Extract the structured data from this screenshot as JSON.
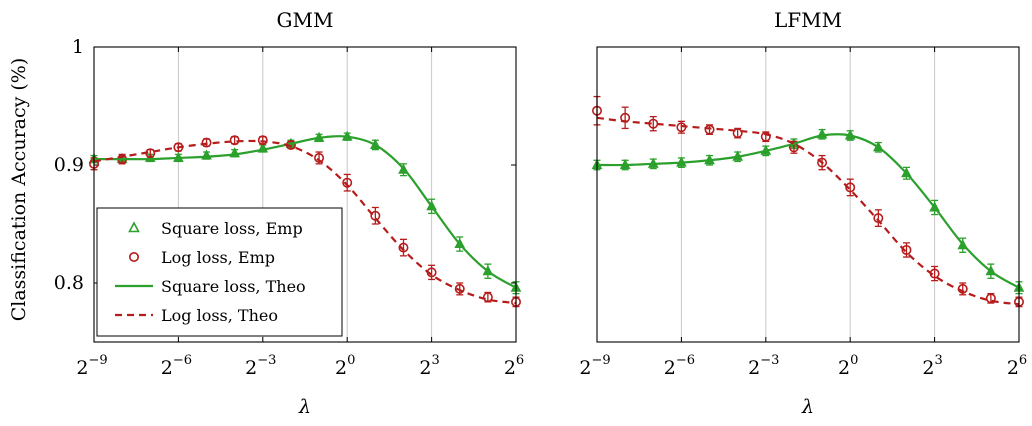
{
  "chart_data": [
    {
      "type": "line",
      "title": "GMM",
      "xlabel": "λ",
      "ylabel": "Classification Accuracy (%)",
      "x_scale": "log2",
      "x": [
        -9,
        -8,
        -7,
        -6,
        -5,
        -4,
        -3,
        -2,
        -1,
        0,
        1,
        2,
        3,
        4,
        5,
        6
      ],
      "xlim": [
        -9,
        6
      ],
      "ylim": [
        0.75,
        1.0
      ],
      "xticks": [
        -9,
        -6,
        -3,
        0,
        3,
        6
      ],
      "yticks": [
        0.8,
        0.9,
        1
      ],
      "ytick_labels": [
        "0.8",
        "0.9",
        "1"
      ],
      "grid": "vertical",
      "legend": "bottom-left",
      "series": [
        {
          "name": "Square loss, Emp",
          "kind": "markers",
          "marker": "triangle",
          "color": "#2ca02c",
          "values": [
            0.905,
            0.905,
            0.906,
            0.906,
            0.908,
            0.91,
            0.914,
            0.918,
            0.923,
            0.924,
            0.917,
            0.896,
            0.865,
            0.833,
            0.81,
            0.796
          ],
          "errors": [
            0.003,
            0.003,
            0.003,
            0.003,
            0.003,
            0.003,
            0.003,
            0.003,
            0.003,
            0.003,
            0.004,
            0.005,
            0.006,
            0.006,
            0.006,
            0.005
          ]
        },
        {
          "name": "Log loss, Emp",
          "kind": "markers",
          "marker": "circle",
          "color": "#b71c1c",
          "values": [
            0.901,
            0.905,
            0.91,
            0.915,
            0.919,
            0.921,
            0.921,
            0.917,
            0.906,
            0.885,
            0.857,
            0.83,
            0.809,
            0.795,
            0.788,
            0.784
          ],
          "errors": [
            0.005,
            0.004,
            0.003,
            0.003,
            0.003,
            0.003,
            0.003,
            0.003,
            0.005,
            0.007,
            0.007,
            0.007,
            0.006,
            0.005,
            0.004,
            0.004
          ]
        },
        {
          "name": "Square loss, Theo",
          "kind": "line",
          "style": "solid",
          "color": "#2ca02c",
          "values": [
            0.905,
            0.905,
            0.905,
            0.906,
            0.907,
            0.909,
            0.913,
            0.918,
            0.923,
            0.924,
            0.917,
            0.897,
            0.865,
            0.833,
            0.81,
            0.796
          ]
        },
        {
          "name": "Log loss, Theo",
          "kind": "line",
          "style": "dashed",
          "color": "#b71c1c",
          "values": [
            0.903,
            0.907,
            0.911,
            0.915,
            0.918,
            0.92,
            0.92,
            0.916,
            0.904,
            0.883,
            0.855,
            0.828,
            0.807,
            0.794,
            0.786,
            0.783
          ]
        }
      ]
    },
    {
      "type": "line",
      "title": "LFMM",
      "xlabel": "λ",
      "ylabel": "",
      "x_scale": "log2",
      "x": [
        -9,
        -8,
        -7,
        -6,
        -5,
        -4,
        -3,
        -2,
        -1,
        0,
        1,
        2,
        3,
        4,
        5,
        6
      ],
      "xlim": [
        -9,
        6
      ],
      "ylim": [
        0.75,
        1.0
      ],
      "xticks": [
        -9,
        -6,
        -3,
        0,
        3,
        6
      ],
      "yticks": [],
      "ytick_labels": [],
      "grid": "vertical",
      "legend": "none",
      "series": [
        {
          "name": "Square loss, Emp",
          "kind": "markers",
          "marker": "triangle",
          "color": "#2ca02c",
          "values": [
            0.9,
            0.9,
            0.901,
            0.902,
            0.904,
            0.907,
            0.912,
            0.918,
            0.926,
            0.925,
            0.915,
            0.893,
            0.864,
            0.832,
            0.81,
            0.796
          ],
          "errors": [
            0.004,
            0.004,
            0.004,
            0.004,
            0.004,
            0.004,
            0.004,
            0.004,
            0.004,
            0.004,
            0.004,
            0.005,
            0.006,
            0.006,
            0.006,
            0.005
          ]
        },
        {
          "name": "Log loss, Emp",
          "kind": "markers",
          "marker": "circle",
          "color": "#b71c1c",
          "values": [
            0.946,
            0.94,
            0.935,
            0.932,
            0.93,
            0.927,
            0.924,
            0.915,
            0.902,
            0.881,
            0.855,
            0.828,
            0.808,
            0.795,
            0.787,
            0.784
          ],
          "errors": [
            0.012,
            0.009,
            0.006,
            0.005,
            0.004,
            0.004,
            0.004,
            0.005,
            0.006,
            0.007,
            0.007,
            0.006,
            0.006,
            0.005,
            0.004,
            0.004
          ]
        },
        {
          "name": "Square loss, Theo",
          "kind": "line",
          "style": "solid",
          "color": "#2ca02c",
          "values": [
            0.9,
            0.9,
            0.901,
            0.902,
            0.904,
            0.907,
            0.912,
            0.918,
            0.925,
            0.925,
            0.915,
            0.893,
            0.864,
            0.833,
            0.81,
            0.796
          ]
        },
        {
          "name": "Log loss, Theo",
          "kind": "line",
          "style": "dashed",
          "color": "#b71c1c",
          "values": [
            0.94,
            0.937,
            0.935,
            0.933,
            0.931,
            0.929,
            0.926,
            0.918,
            0.902,
            0.879,
            0.853,
            0.826,
            0.806,
            0.793,
            0.785,
            0.782
          ]
        }
      ]
    }
  ]
}
